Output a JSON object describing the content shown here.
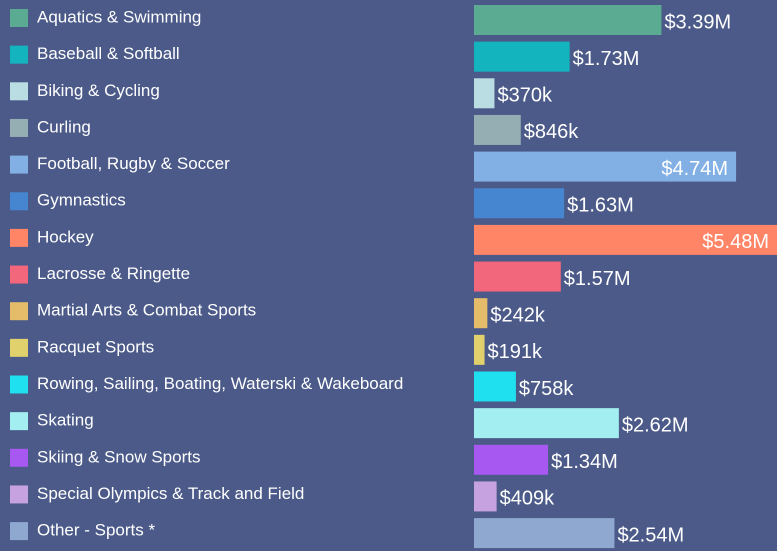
{
  "chart_data": {
    "type": "bar",
    "orientation": "horizontal",
    "categories": [
      "Aquatics & Swimming",
      "Baseball & Softball",
      "Biking & Cycling",
      "Curling",
      "Football, Rugby & Soccer",
      "Gymnastics",
      "Hockey",
      "Lacrosse & Ringette",
      "Martial Arts & Combat Sports",
      "Racquet Sports",
      "Rowing, Sailing, Boating, Waterski & Wakeboard",
      "Skating",
      "Skiing & Snow Sports",
      "Special Olympics & Track and Field",
      "Other - Sports *"
    ],
    "values": [
      3390000,
      1730000,
      370000,
      846000,
      4740000,
      1630000,
      5480000,
      1570000,
      242000,
      191000,
      758000,
      2620000,
      1340000,
      409000,
      2540000
    ],
    "value_labels": [
      "$3.39M",
      "$1.73M",
      "$370k",
      "$846k",
      "$4.74M",
      "$1.63M",
      "$5.48M",
      "$1.57M",
      "$242k",
      "$191k",
      "$758k",
      "$2.62M",
      "$1.34M",
      "$409k",
      "$2.54M"
    ],
    "colors": [
      "#5aab92",
      "#14b4be",
      "#b9dde2",
      "#95aeb3",
      "#82b0e4",
      "#4686d0",
      "#ff8566",
      "#f2677b",
      "#e4bc6a",
      "#e0d16d",
      "#1fe0ee",
      "#a3eef0",
      "#a758f0",
      "#c7a2e1",
      "#8ea8d0"
    ]
  }
}
